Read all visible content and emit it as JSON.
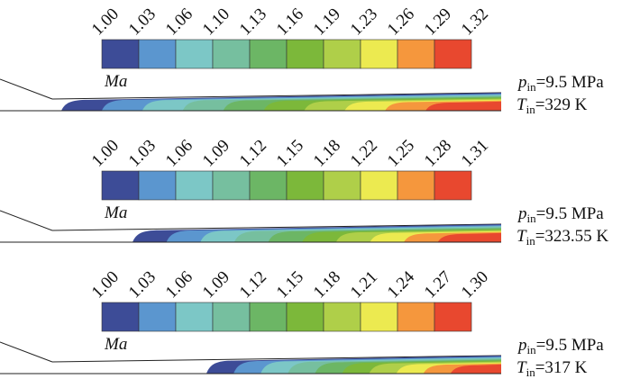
{
  "colors": [
    "#3d4c97",
    "#5b96cf",
    "#7cc7c6",
    "#76bf9f",
    "#6cb665",
    "#7cb83a",
    "#afcf49",
    "#ecea50",
    "#f5973d",
    "#e8482f"
  ],
  "panels": [
    {
      "legend_ticks": [
        "1.00",
        "1.03",
        "1.06",
        "1.10",
        "1.13",
        "1.16",
        "1.19",
        "1.23",
        "1.26",
        "1.29",
        "1.32"
      ],
      "variable": "Ma",
      "p_symbol": "p",
      "p_sub": "in",
      "p_value": "=9.5 MPa",
      "t_symbol": "T",
      "t_sub": "in",
      "t_value": "=329 K"
    },
    {
      "legend_ticks": [
        "1.00",
        "1.03",
        "1.06",
        "1.09",
        "1.12",
        "1.15",
        "1.18",
        "1.22",
        "1.25",
        "1.28",
        "1.31"
      ],
      "variable": "Ma",
      "p_symbol": "p",
      "p_sub": "in",
      "p_value": "=9.5 MPa",
      "t_symbol": "T",
      "t_sub": "in",
      "t_value": "=323.55 K"
    },
    {
      "legend_ticks": [
        "1.00",
        "1.03",
        "1.06",
        "1.09",
        "1.12",
        "1.15",
        "1.18",
        "1.21",
        "1.24",
        "1.27",
        "1.30"
      ],
      "variable": "Ma",
      "p_symbol": "p",
      "p_sub": "in",
      "p_value": "=9.5 MPa",
      "t_symbol": "T",
      "t_sub": "in",
      "t_value": "=317 K"
    }
  ]
}
